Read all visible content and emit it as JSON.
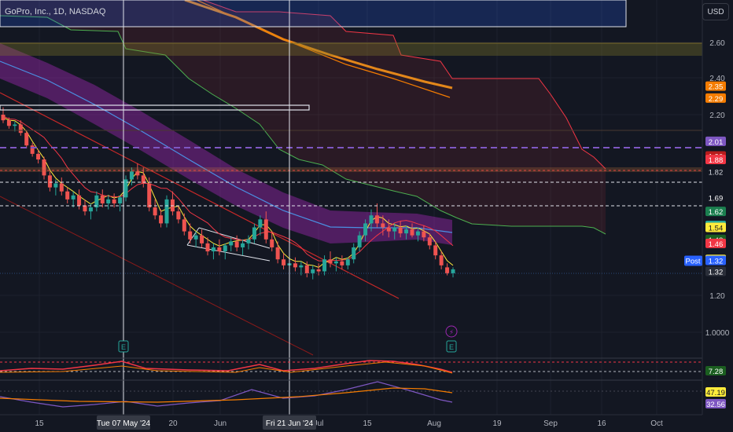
{
  "title": "GoPro, Inc., 1D, NASDAQ",
  "currency_button": "USD",
  "colors": {
    "background": "#131722",
    "up": "#26a69a",
    "down": "#ef5350",
    "grid": "#1e222d",
    "ma_orange": "#f7931a",
    "cloud_band": "#7b2a83",
    "red_line": "#b71c1c"
  },
  "chart_data": {
    "type": "candlestick",
    "y_axis": {
      "ticks": [
        "2.60",
        "2.40",
        "2.20",
        "1.20",
        "1.0000"
      ],
      "range": [
        0.9,
        2.75
      ]
    },
    "x_axis": {
      "ticks": [
        "15",
        "Jun",
        "20",
        "Jul",
        "15",
        "Aug",
        "19",
        "Sep",
        "16",
        "Oct"
      ],
      "crosshair_labels": [
        "Tue 07 May '24",
        "Fri 21 Jun '24"
      ]
    },
    "candles": [
      [
        2.2,
        2.24,
        2.14,
        2.16
      ],
      [
        2.16,
        2.18,
        2.1,
        2.12
      ],
      [
        2.12,
        2.15,
        2.08,
        2.13
      ],
      [
        2.13,
        2.16,
        2.05,
        2.07
      ],
      [
        2.07,
        2.09,
        1.96,
        1.98
      ],
      [
        1.98,
        2.0,
        1.9,
        1.92
      ],
      [
        1.92,
        1.95,
        1.86,
        1.88
      ],
      [
        1.88,
        1.9,
        1.78,
        1.8
      ],
      [
        1.8,
        1.82,
        1.72,
        1.74
      ],
      [
        1.74,
        1.78,
        1.7,
        1.76
      ],
      [
        1.76,
        1.79,
        1.7,
        1.72
      ],
      [
        1.72,
        1.74,
        1.66,
        1.68
      ],
      [
        1.68,
        1.72,
        1.64,
        1.7
      ],
      [
        1.7,
        1.73,
        1.63,
        1.65
      ],
      [
        1.65,
        1.68,
        1.6,
        1.62
      ],
      [
        1.62,
        1.66,
        1.58,
        1.64
      ],
      [
        1.64,
        1.72,
        1.62,
        1.7
      ],
      [
        1.7,
        1.73,
        1.64,
        1.66
      ],
      [
        1.66,
        1.7,
        1.63,
        1.68
      ],
      [
        1.68,
        1.71,
        1.64,
        1.66
      ],
      [
        1.66,
        1.7,
        1.62,
        1.69
      ],
      [
        1.69,
        1.8,
        1.67,
        1.78
      ],
      [
        1.78,
        1.84,
        1.75,
        1.82
      ],
      [
        1.82,
        1.86,
        1.78,
        1.8
      ],
      [
        1.8,
        1.84,
        1.74,
        1.76
      ],
      [
        1.76,
        1.79,
        1.62,
        1.64
      ],
      [
        1.64,
        1.68,
        1.58,
        1.6
      ],
      [
        1.6,
        1.63,
        1.54,
        1.56
      ],
      [
        1.56,
        1.7,
        1.54,
        1.68
      ],
      [
        1.68,
        1.72,
        1.6,
        1.62
      ],
      [
        1.62,
        1.65,
        1.56,
        1.58
      ],
      [
        1.58,
        1.61,
        1.5,
        1.52
      ],
      [
        1.52,
        1.56,
        1.46,
        1.48
      ],
      [
        1.48,
        1.52,
        1.44,
        1.5
      ],
      [
        1.5,
        1.53,
        1.44,
        1.46
      ],
      [
        1.46,
        1.49,
        1.4,
        1.42
      ],
      [
        1.42,
        1.46,
        1.38,
        1.44
      ],
      [
        1.44,
        1.48,
        1.4,
        1.42
      ],
      [
        1.42,
        1.46,
        1.38,
        1.45
      ],
      [
        1.45,
        1.49,
        1.42,
        1.47
      ],
      [
        1.47,
        1.5,
        1.42,
        1.44
      ],
      [
        1.44,
        1.48,
        1.4,
        1.46
      ],
      [
        1.46,
        1.5,
        1.43,
        1.48
      ],
      [
        1.48,
        1.56,
        1.46,
        1.54
      ],
      [
        1.54,
        1.6,
        1.5,
        1.58
      ],
      [
        1.58,
        1.62,
        1.46,
        1.48
      ],
      [
        1.48,
        1.52,
        1.42,
        1.44
      ],
      [
        1.44,
        1.47,
        1.36,
        1.38
      ],
      [
        1.38,
        1.41,
        1.33,
        1.35
      ],
      [
        1.35,
        1.38,
        1.31,
        1.36
      ],
      [
        1.36,
        1.39,
        1.32,
        1.34
      ],
      [
        1.34,
        1.37,
        1.3,
        1.35
      ],
      [
        1.35,
        1.37,
        1.29,
        1.31
      ],
      [
        1.31,
        1.35,
        1.28,
        1.33
      ],
      [
        1.33,
        1.36,
        1.3,
        1.32
      ],
      [
        1.32,
        1.4,
        1.3,
        1.38
      ],
      [
        1.38,
        1.42,
        1.34,
        1.36
      ],
      [
        1.36,
        1.39,
        1.32,
        1.37
      ],
      [
        1.37,
        1.4,
        1.33,
        1.35
      ],
      [
        1.35,
        1.39,
        1.33,
        1.38
      ],
      [
        1.38,
        1.46,
        1.36,
        1.44
      ],
      [
        1.44,
        1.52,
        1.42,
        1.5
      ],
      [
        1.5,
        1.58,
        1.47,
        1.56
      ],
      [
        1.56,
        1.63,
        1.52,
        1.6
      ],
      [
        1.6,
        1.66,
        1.54,
        1.56
      ],
      [
        1.56,
        1.6,
        1.5,
        1.54
      ],
      [
        1.54,
        1.58,
        1.49,
        1.52
      ],
      [
        1.52,
        1.56,
        1.48,
        1.54
      ],
      [
        1.54,
        1.57,
        1.49,
        1.51
      ],
      [
        1.51,
        1.55,
        1.48,
        1.53
      ],
      [
        1.53,
        1.56,
        1.49,
        1.5
      ],
      [
        1.5,
        1.54,
        1.47,
        1.52
      ],
      [
        1.52,
        1.55,
        1.47,
        1.49
      ],
      [
        1.49,
        1.51,
        1.43,
        1.45
      ],
      [
        1.45,
        1.47,
        1.38,
        1.4
      ],
      [
        1.4,
        1.42,
        1.33,
        1.35
      ],
      [
        1.34,
        1.36,
        1.3,
        1.31
      ],
      [
        1.31,
        1.34,
        1.29,
        1.33
      ]
    ],
    "price_labels": [
      {
        "value": "2.35",
        "bg": "#f57c00",
        "fg": "#ffffff",
        "y": 2.355
      },
      {
        "value": "2.29",
        "bg": "#f57c00",
        "fg": "#ffffff",
        "y": 2.29
      },
      {
        "value": "2.01",
        "bg": "#7e57c2",
        "fg": "#ffffff",
        "y": 2.01
      },
      {
        "value": "1.90",
        "bg": "#b71c1c",
        "fg": "#ffffff",
        "y": 1.905
      },
      {
        "value": "1.88",
        "bg": "#f23645",
        "fg": "#ffffff",
        "y": 1.88
      },
      {
        "value": "1.82",
        "bg": "#131722",
        "fg": "#d1d4dc",
        "y": 1.82
      },
      {
        "value": "1.69",
        "bg": "#131722",
        "fg": "#ffffff",
        "y": 1.69
      },
      {
        "value": "1.62",
        "bg": "#1b7f4f",
        "fg": "#ffffff",
        "y": 1.62
      },
      {
        "value": "1.55",
        "bg": "#26a69a",
        "fg": "#ffffff",
        "y": 1.55
      },
      {
        "value": "1.54",
        "bg": "#ffeb3b",
        "fg": "#131722",
        "y": 1.54
      },
      {
        "value": "1.48",
        "bg": "#1b5e20",
        "fg": "#ffffff",
        "y": 1.48
      },
      {
        "value": "1.46",
        "bg": "#f23645",
        "fg": "#ffffff",
        "y": 1.46
      },
      {
        "value": "1.38",
        "bg": "#ffeb3b",
        "fg": "#131722",
        "y": 1.38
      },
      {
        "value": "1.32",
        "bg": "#2a2e39",
        "fg": "#ffffff",
        "y": 1.32
      }
    ],
    "post_label": "Post",
    "post_value": "1.32",
    "indicator1_label": "7.28",
    "indicator2_labels": [
      "47.19",
      "32.56"
    ],
    "earnings_markers": [
      "E",
      "E"
    ]
  }
}
